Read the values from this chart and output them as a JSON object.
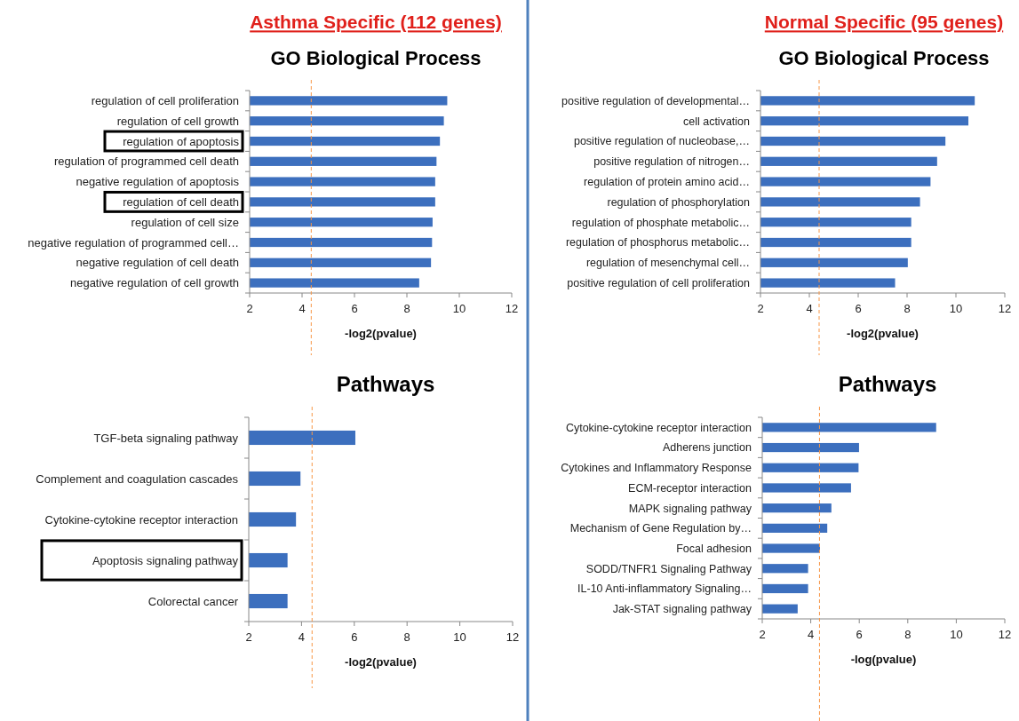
{
  "chart_data": [
    {
      "type": "bar",
      "orientation": "horizontal",
      "title": "Asthma Specific (112 genes)",
      "subtitle": "GO Biological Process",
      "xlabel": "-log2(pvalue)",
      "categories": [
        "regulation of cell proliferation",
        "regulation of cell growth",
        "regulation of apoptosis",
        "regulation of programmed cell death",
        "negative regulation of apoptosis",
        "regulation of cell death",
        "regulation of cell size",
        "negative regulation of programmed cell…",
        "negative regulation of cell death",
        "negative regulation of cell growth"
      ],
      "values": [
        9.54,
        9.41,
        9.26,
        9.13,
        9.08,
        9.08,
        8.98,
        8.96,
        8.92,
        8.47
      ],
      "color": "#3c6fbe",
      "xlim": [
        2,
        12
      ],
      "xticks": [
        2,
        4,
        6,
        8,
        10,
        12
      ],
      "ref_lines": [
        {
          "axis": "x",
          "value": 4.35,
          "color": "#f79646",
          "line_style": "dashed"
        }
      ]
    },
    {
      "type": "bar",
      "orientation": "horizontal",
      "title": "Normal Specific (95 genes)",
      "subtitle": "GO Biological Process",
      "xlabel": "-log2(pvalue)",
      "categories": [
        "positive regulation of developmental…",
        "cell activation",
        "positive regulation of nucleobase,…",
        "positive regulation of nitrogen…",
        "regulation of protein amino acid…",
        "regulation of phosphorylation",
        "regulation of phosphate metabolic…",
        "regulation of phosphorus metabolic…",
        "regulation of mesenchymal cell…",
        "positive regulation of cell proliferation"
      ],
      "values": [
        10.77,
        10.51,
        9.57,
        9.23,
        8.96,
        8.53,
        8.17,
        8.17,
        8.03,
        7.51
      ],
      "color": "#3c6fbe",
      "xlim": [
        2,
        12
      ],
      "xticks": [
        2,
        4,
        6,
        8,
        10,
        12
      ],
      "ref_lines": [
        {
          "axis": "x",
          "value": 4.4,
          "color": "#f79646",
          "line_style": "dashed"
        }
      ]
    },
    {
      "type": "bar",
      "orientation": "horizontal",
      "title": "Pathways",
      "xlabel": "-log2(pvalue)",
      "categories": [
        "TGF-beta signaling pathway",
        "Complement and coagulation cascades",
        "Cytokine-cytokine receptor interaction",
        "Apoptosis signaling pathway",
        "Colorectal cancer"
      ],
      "values": [
        6.04,
        3.96,
        3.79,
        3.47,
        3.47
      ],
      "color": "#3c6fbe",
      "xlim": [
        2,
        12
      ],
      "xticks": [
        2,
        4,
        6,
        8,
        10,
        12
      ],
      "ref_lines": [
        {
          "axis": "x",
          "value": 4.4,
          "color": "#f79646",
          "line_style": "dashed"
        }
      ]
    },
    {
      "type": "bar",
      "orientation": "horizontal",
      "title": "Pathways",
      "xlabel": "-log(pvalue)",
      "categories": [
        "Cytokine-cytokine receptor interaction",
        "Adherens junction",
        "Cytokines and Inflammatory Response",
        "ECM-receptor interaction",
        "MAPK signaling pathway",
        "Mechanism of Gene Regulation by…",
        "Focal adhesion",
        "SODD/TNFR1 Signaling Pathway",
        "IL-10 Anti-inflammatory Signaling…",
        "Jak-STAT signaling pathway"
      ],
      "values": [
        9.17,
        5.99,
        5.97,
        5.66,
        4.85,
        4.68,
        4.38,
        3.89,
        3.89,
        3.46
      ],
      "color": "#3c6fbe",
      "xlim": [
        2,
        12
      ],
      "xticks": [
        2,
        4,
        6,
        8,
        10,
        12
      ],
      "ref_lines": [
        {
          "axis": "x",
          "value": 4.36,
          "color": "#f79646",
          "line_style": "dashed"
        }
      ]
    }
  ]
}
